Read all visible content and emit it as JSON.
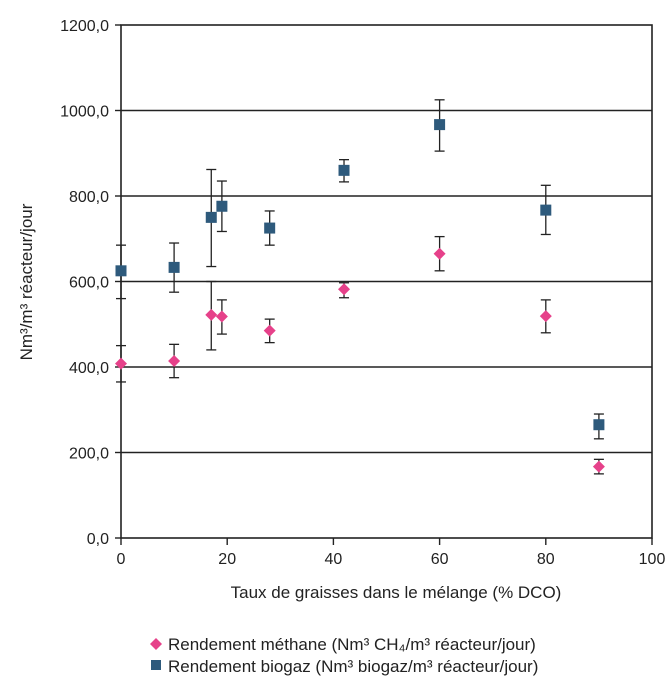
{
  "chart_data": {
    "type": "scatter",
    "title": "",
    "xlabel": "Taux de graisses dans le mélange (% DCO)",
    "ylabel": "Nm³/m³ réacteur/jour",
    "xlim": [
      0,
      100
    ],
    "ylim": [
      0,
      1200
    ],
    "x_ticks": [
      "0",
      "20",
      "40",
      "60",
      "80",
      "100"
    ],
    "y_ticks": [
      "0,0",
      "200,0",
      "400,0",
      "600,0",
      "800,0",
      "1000,0",
      "1200,0"
    ],
    "grid": "horizontal",
    "legend_position": "bottom",
    "series": [
      {
        "name": "Rendement méthane (Nm³ CH₄/m³ réacteur/jour)",
        "marker": "diamond",
        "color": "#e6418a",
        "points": [
          {
            "x": 0,
            "y": 408,
            "err_low": 365,
            "err_high": 450
          },
          {
            "x": 10,
            "y": 414,
            "err_low": 375,
            "err_high": 453
          },
          {
            "x": 17,
            "y": 522,
            "err_low": 440,
            "err_high": 600
          },
          {
            "x": 19,
            "y": 518,
            "err_low": 477,
            "err_high": 557
          },
          {
            "x": 28,
            "y": 485,
            "err_low": 457,
            "err_high": 512
          },
          {
            "x": 42,
            "y": 582,
            "err_low": 562,
            "err_high": 597
          },
          {
            "x": 60,
            "y": 665,
            "err_low": 625,
            "err_high": 705
          },
          {
            "x": 80,
            "y": 519,
            "err_low": 480,
            "err_high": 557
          },
          {
            "x": 90,
            "y": 167,
            "err_low": 150,
            "err_high": 184
          }
        ]
      },
      {
        "name": "Rendement biogaz (Nm³ biogaz/m³ réacteur/jour)",
        "marker": "square",
        "color": "#2e5a7c",
        "points": [
          {
            "x": 0,
            "y": 625,
            "err_low": 560,
            "err_high": 685
          },
          {
            "x": 10,
            "y": 633,
            "err_low": 575,
            "err_high": 690
          },
          {
            "x": 17,
            "y": 750,
            "err_low": 635,
            "err_high": 862
          },
          {
            "x": 19,
            "y": 776,
            "err_low": 717,
            "err_high": 835
          },
          {
            "x": 28,
            "y": 725,
            "err_low": 685,
            "err_high": 765
          },
          {
            "x": 42,
            "y": 860,
            "err_low": 833,
            "err_high": 885
          },
          {
            "x": 60,
            "y": 967,
            "err_low": 905,
            "err_high": 1025
          },
          {
            "x": 80,
            "y": 767,
            "err_low": 710,
            "err_high": 825
          },
          {
            "x": 90,
            "y": 265,
            "err_low": 232,
            "err_high": 290
          }
        ]
      }
    ]
  }
}
